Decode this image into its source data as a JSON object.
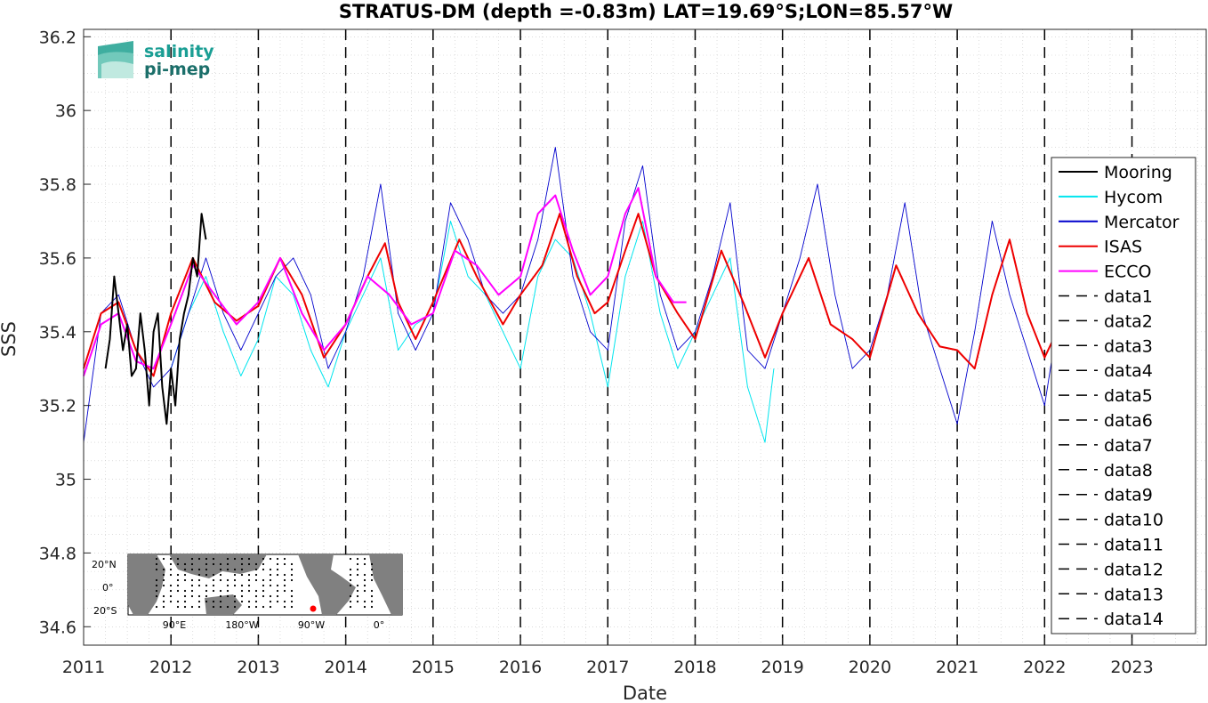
{
  "chart_data": {
    "type": "line",
    "title": "STRATUS-DM (depth =-0.83m) LAT=19.69°S;LON=85.57°W",
    "xlabel": "Date",
    "ylabel": "SSS",
    "xlim": [
      2011.0,
      2023.85
    ],
    "ylim": [
      34.55,
      36.22
    ],
    "xticks": [
      "2011",
      "2012",
      "2013",
      "2014",
      "2015",
      "2016",
      "2017",
      "2018",
      "2019",
      "2020",
      "2021",
      "2022",
      "2023"
    ],
    "yticks": [
      "34.6",
      "34.8",
      "35",
      "35.2",
      "35.4",
      "35.6",
      "35.8",
      "36",
      "36.2"
    ],
    "grid": "minor-dotted",
    "legend_position": "right",
    "series": [
      {
        "name": "Mooring",
        "color": "#000000",
        "x": [
          2011.25,
          2011.3,
          2011.35,
          2011.4,
          2011.45,
          2011.5,
          2011.55,
          2011.6,
          2011.65,
          2011.7,
          2011.75,
          2011.8,
          2011.85,
          2011.9,
          2011.95,
          2012.0,
          2012.05,
          2012.1,
          2012.15,
          2012.2,
          2012.25,
          2012.3,
          2012.35,
          2012.4
        ],
        "values": [
          35.3,
          35.38,
          35.55,
          35.45,
          35.35,
          35.42,
          35.28,
          35.3,
          35.45,
          35.35,
          35.2,
          35.4,
          35.45,
          35.25,
          35.15,
          35.3,
          35.2,
          35.38,
          35.45,
          35.5,
          35.6,
          35.55,
          35.72,
          35.65
        ]
      },
      {
        "name": "Hycom",
        "color": "#00e5ee",
        "x": [
          2012.0,
          2012.2,
          2012.4,
          2012.6,
          2012.8,
          2013.0,
          2013.2,
          2013.4,
          2013.6,
          2013.8,
          2014.0,
          2014.2,
          2014.4,
          2014.6,
          2014.8,
          2015.0,
          2015.2,
          2015.4,
          2015.6,
          2015.8,
          2016.0,
          2016.2,
          2016.4,
          2016.6,
          2016.8,
          2017.0,
          2017.2,
          2017.4,
          2017.6,
          2017.8,
          2018.0,
          2018.2,
          2018.4,
          2018.6,
          2018.8,
          2018.9
        ],
        "values": [
          35.3,
          35.45,
          35.55,
          35.4,
          35.28,
          35.38,
          35.55,
          35.5,
          35.35,
          35.25,
          35.4,
          35.5,
          35.6,
          35.35,
          35.42,
          35.45,
          35.7,
          35.55,
          35.5,
          35.4,
          35.3,
          35.55,
          35.65,
          35.6,
          35.45,
          35.25,
          35.55,
          35.7,
          35.45,
          35.3,
          35.4,
          35.5,
          35.6,
          35.25,
          35.1,
          35.3
        ]
      },
      {
        "name": "Mercator",
        "color": "#0000cd",
        "x": [
          2011.0,
          2011.2,
          2011.4,
          2011.6,
          2011.8,
          2012.0,
          2012.2,
          2012.4,
          2012.6,
          2012.8,
          2013.0,
          2013.2,
          2013.4,
          2013.6,
          2013.8,
          2014.0,
          2014.2,
          2014.4,
          2014.6,
          2014.8,
          2015.0,
          2015.2,
          2015.4,
          2015.6,
          2015.8,
          2016.0,
          2016.2,
          2016.4,
          2016.6,
          2016.8,
          2017.0,
          2017.2,
          2017.4,
          2017.6,
          2017.8,
          2018.0,
          2018.2,
          2018.4,
          2018.6,
          2018.8,
          2019.0,
          2019.2,
          2019.4,
          2019.6,
          2019.8,
          2020.0,
          2020.2,
          2020.4,
          2020.6,
          2020.8,
          2021.0,
          2021.2,
          2021.4,
          2021.6,
          2021.8,
          2022.0,
          2022.1
        ],
        "values": [
          35.1,
          35.45,
          35.5,
          35.35,
          35.25,
          35.3,
          35.45,
          35.6,
          35.45,
          35.35,
          35.45,
          35.55,
          35.6,
          35.5,
          35.3,
          35.4,
          35.55,
          35.8,
          35.45,
          35.35,
          35.45,
          35.75,
          35.65,
          35.5,
          35.45,
          35.5,
          35.65,
          35.9,
          35.55,
          35.4,
          35.35,
          35.7,
          35.85,
          35.5,
          35.35,
          35.4,
          35.55,
          35.75,
          35.35,
          35.3,
          35.45,
          35.6,
          35.8,
          35.5,
          35.3,
          35.35,
          35.5,
          35.75,
          35.45,
          35.3,
          35.15,
          35.4,
          35.7,
          35.5,
          35.35,
          35.2,
          35.35
        ]
      },
      {
        "name": "ISAS",
        "color": "#ee0000",
        "x": [
          2011.0,
          2011.2,
          2011.4,
          2011.6,
          2011.8,
          2012.0,
          2012.25,
          2012.5,
          2012.75,
          2013.0,
          2013.25,
          2013.5,
          2013.75,
          2014.0,
          2014.25,
          2014.45,
          2014.6,
          2014.8,
          2015.0,
          2015.3,
          2015.5,
          2015.8,
          2016.0,
          2016.25,
          2016.45,
          2016.65,
          2016.85,
          2017.0,
          2017.2,
          2017.35,
          2017.55,
          2017.8,
          2018.0,
          2018.3,
          2018.55,
          2018.8,
          2019.0,
          2019.3,
          2019.55,
          2019.8,
          2020.0,
          2020.3,
          2020.55,
          2020.8,
          2021.0,
          2021.2,
          2021.4,
          2021.6,
          2021.8,
          2022.0,
          2022.1
        ],
        "values": [
          35.3,
          35.45,
          35.48,
          35.35,
          35.28,
          35.45,
          35.6,
          35.48,
          35.43,
          35.47,
          35.6,
          35.5,
          35.33,
          35.42,
          35.55,
          35.64,
          35.48,
          35.38,
          35.48,
          35.65,
          35.55,
          35.42,
          35.5,
          35.58,
          35.72,
          35.55,
          35.45,
          35.48,
          35.62,
          35.72,
          35.55,
          35.45,
          35.38,
          35.62,
          35.48,
          35.33,
          35.45,
          35.6,
          35.42,
          35.38,
          35.33,
          35.58,
          35.45,
          35.36,
          35.35,
          35.3,
          35.5,
          35.65,
          35.45,
          35.33,
          35.38
        ]
      },
      {
        "name": "ECCO",
        "color": "#ff00ff",
        "x": [
          2011.0,
          2011.2,
          2011.4,
          2011.6,
          2011.8,
          2012.0,
          2012.25,
          2012.5,
          2012.75,
          2013.0,
          2013.25,
          2013.5,
          2013.75,
          2014.0,
          2014.25,
          2014.5,
          2014.75,
          2015.0,
          2015.25,
          2015.5,
          2015.75,
          2016.0,
          2016.2,
          2016.4,
          2016.6,
          2016.8,
          2017.0,
          2017.2,
          2017.35,
          2017.55,
          2017.75,
          2017.9
        ],
        "values": [
          35.28,
          35.42,
          35.45,
          35.32,
          35.3,
          35.42,
          35.58,
          35.5,
          35.42,
          35.48,
          35.6,
          35.45,
          35.35,
          35.42,
          35.55,
          35.5,
          35.42,
          35.45,
          35.62,
          35.58,
          35.5,
          35.55,
          35.72,
          35.77,
          35.62,
          35.5,
          35.55,
          35.72,
          35.79,
          35.55,
          35.48,
          35.48
        ]
      }
    ],
    "dashed_series": [
      "data1",
      "data2",
      "data3",
      "data4",
      "data5",
      "data6",
      "data7",
      "data8",
      "data9",
      "data10",
      "data11",
      "data12",
      "data13",
      "data14"
    ],
    "vertical_dates": [
      2012,
      2013,
      2014,
      2015,
      2016,
      2017,
      2018,
      2019,
      2020,
      2021,
      2022,
      2023
    ]
  },
  "logo": {
    "line1": "salinity",
    "line2": "pi-mep",
    "color1": "#1a9e94",
    "color2": "#1b6f6a"
  },
  "inset_map": {
    "lat_labels": [
      "20°N",
      "0°",
      "20°S"
    ],
    "lon_labels": [
      "90°E",
      "180°W",
      "90°W",
      "0°"
    ],
    "land_color": "#808080",
    "marker_color": "#ff0000"
  }
}
